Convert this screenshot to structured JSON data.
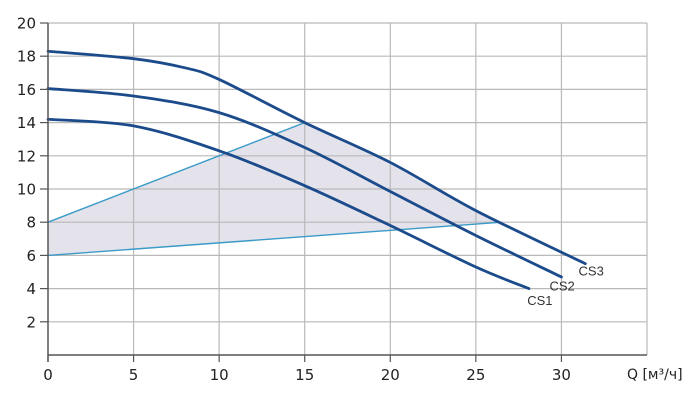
{
  "chart_data": {
    "type": "line",
    "title": "",
    "xlabel": "Q [м³/ч]",
    "ylabel": "",
    "xlim": [
      0,
      35
    ],
    "ylim": [
      0,
      20
    ],
    "x_ticks": [
      0,
      5,
      10,
      15,
      20,
      25,
      30
    ],
    "y_ticks": [
      2,
      4,
      6,
      8,
      10,
      12,
      14,
      16,
      18,
      20
    ],
    "x_tick_labels": [
      "0",
      "5",
      "10",
      "15",
      "20",
      "25",
      "30"
    ],
    "y_tick_labels": [
      "2",
      "4",
      "6",
      "8",
      "10",
      "12",
      "14",
      "16",
      "18",
      "20"
    ],
    "grid": true,
    "legend": "inline labels at curve ends",
    "series": [
      {
        "name": "CS1",
        "color": "#1c4b8c",
        "x": [
          0,
          5,
          10,
          15,
          20,
          25,
          28.1
        ],
        "values": [
          14.2,
          13.8,
          12.3,
          10.2,
          7.8,
          5.3,
          4.0
        ],
        "label_pos": [
          28.0,
          3.0
        ]
      },
      {
        "name": "CS2",
        "color": "#1c4b8c",
        "x": [
          0,
          5,
          10,
          15,
          20,
          25,
          30
        ],
        "values": [
          16.05,
          15.6,
          14.6,
          12.5,
          9.85,
          7.2,
          4.7
        ],
        "label_pos": [
          29.3,
          3.9
        ]
      },
      {
        "name": "CS3",
        "color": "#1c4b8c",
        "x": [
          0,
          5,
          8,
          10,
          15,
          20,
          25,
          31.4
        ],
        "values": [
          18.3,
          17.85,
          17.3,
          16.6,
          14.0,
          11.6,
          8.7,
          5.5
        ],
        "label_pos": [
          31.0,
          4.8
        ]
      }
    ],
    "operating_region": {
      "fill_color": "#e4e2eb",
      "line_color": "#3a9ac8",
      "upper_boundary": {
        "x": [
          0,
          15
        ],
        "values": [
          8,
          14
        ]
      },
      "lower_boundary": {
        "x": [
          0,
          26.5
        ],
        "values": [
          6,
          8
        ]
      },
      "polygon": [
        [
          0,
          8
        ],
        [
          15,
          14
        ],
        [
          20,
          11.6
        ],
        [
          25,
          8.7
        ],
        [
          26.5,
          8.0
        ],
        [
          0,
          6
        ]
      ]
    },
    "colors": {
      "curve": "#1c4b8c",
      "boundary": "#3a9ac8",
      "fill": "#e4e2eb",
      "grid": "#b9b9b9",
      "axis": "#555555"
    }
  }
}
